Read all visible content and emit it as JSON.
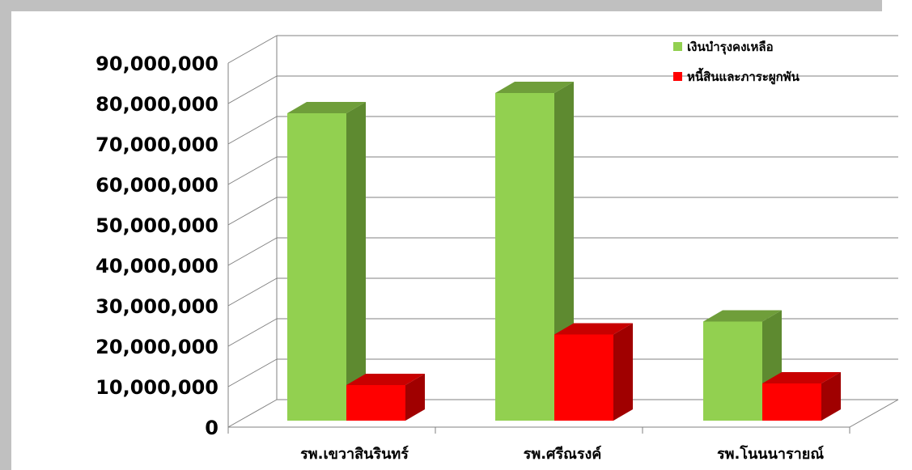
{
  "chart_data": {
    "type": "bar",
    "variant": "3d-clustered-column",
    "categories": [
      "รพ.เขวาสินรินทร์",
      "รพ.ศรีณรงค์",
      "รพ.โนนนารายณ์"
    ],
    "series": [
      {
        "name": "เงินบำรุงคงเหลือ",
        "values": [
          76000000,
          81000000,
          24500000
        ],
        "color": "#92d050",
        "side_color": "#5e8a30",
        "top_color": "#6f9e3a"
      },
      {
        "name": "หนี้สินและภาระผูกพัน",
        "values": [
          8800000,
          21300000,
          9200000
        ],
        "color": "#ff0000",
        "side_color": "#a00000",
        "top_color": "#c80000"
      }
    ],
    "y_ticks": [
      "0",
      "10,000,000",
      "20,000,000",
      "30,000,000",
      "40,000,000",
      "50,000,000",
      "60,000,000",
      "70,000,000",
      "80,000,000",
      "90,000,000"
    ],
    "ylim": [
      0,
      90000000
    ],
    "xlabel": "",
    "ylabel": "",
    "title": "",
    "grid": true,
    "legend_position": "top-right"
  },
  "colors": {
    "window_border": "#c0c0c0",
    "gridline": "#808080",
    "background": "#ffffff"
  }
}
